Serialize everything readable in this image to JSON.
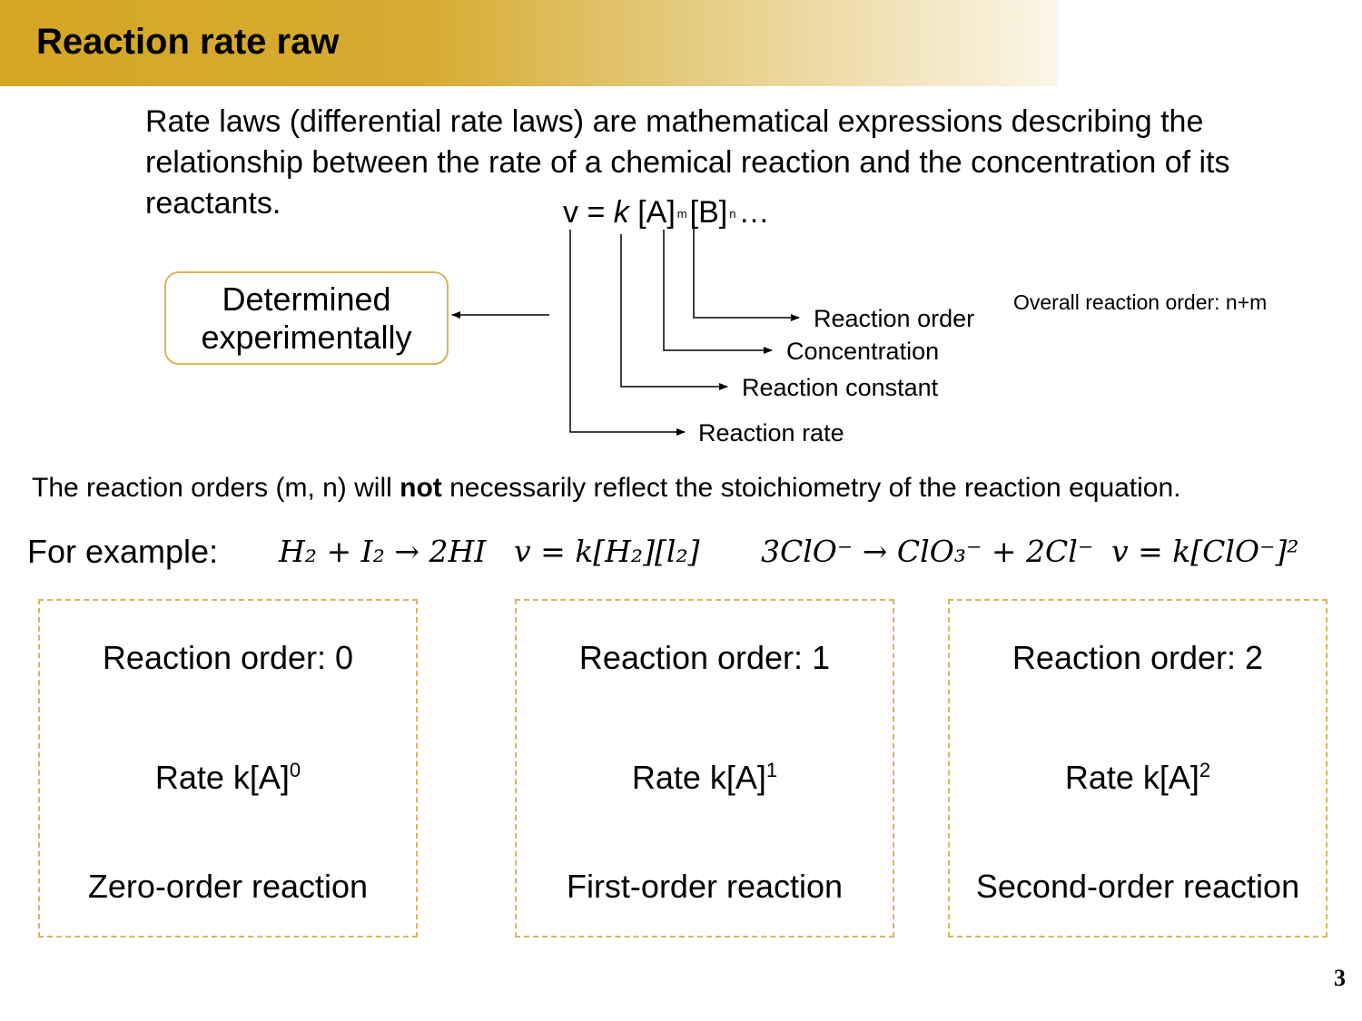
{
  "header": {
    "title": "Reaction rate raw"
  },
  "intro": "Rate laws (differential rate laws) are mathematical expressions describing the relationship between the rate of a chemical reaction and the concentration of its reactants.",
  "formula": {
    "lhs": "v = ",
    "k": "k",
    "a": " [A]",
    "m": "m",
    "b": "[B]",
    "n": "n",
    "tail": "…"
  },
  "determined_box": "Determined experimentally",
  "annotations": {
    "reaction_order": "Reaction order",
    "concentration": "Concentration",
    "reaction_constant": "Reaction constant",
    "reaction_rate": "Reaction rate",
    "overall": "Overall reaction order: n+m"
  },
  "note": {
    "before": "The reaction orders (m, n) will ",
    "bold": "not",
    "after": " necessarily reflect the stoichiometry of the reaction equation."
  },
  "example": {
    "label": "For example:",
    "eq1_reaction": "H₂ + I₂ → 2HI",
    "eq1_rate": "v = k[H₂][l₂]",
    "eq2_reaction": "3ClO⁻ → ClO₃⁻ + 2Cl⁻",
    "eq2_rate": "v = k[ClO⁻]²"
  },
  "cards": [
    {
      "order": "Reaction order: 0",
      "rate": "Rate k[A]",
      "exp": "0",
      "name": "Zero-order reaction"
    },
    {
      "order": "Reaction order: 1",
      "rate": "Rate k[A]",
      "exp": "1",
      "name": "First-order reaction"
    },
    {
      "order": "Reaction order: 2",
      "rate": "Rate k[A]",
      "exp": "2",
      "name": "Second-order reaction"
    }
  ],
  "page_number": "3",
  "colors": {
    "banner_gold": "#d4a623",
    "box_border": "#d9b55b"
  }
}
